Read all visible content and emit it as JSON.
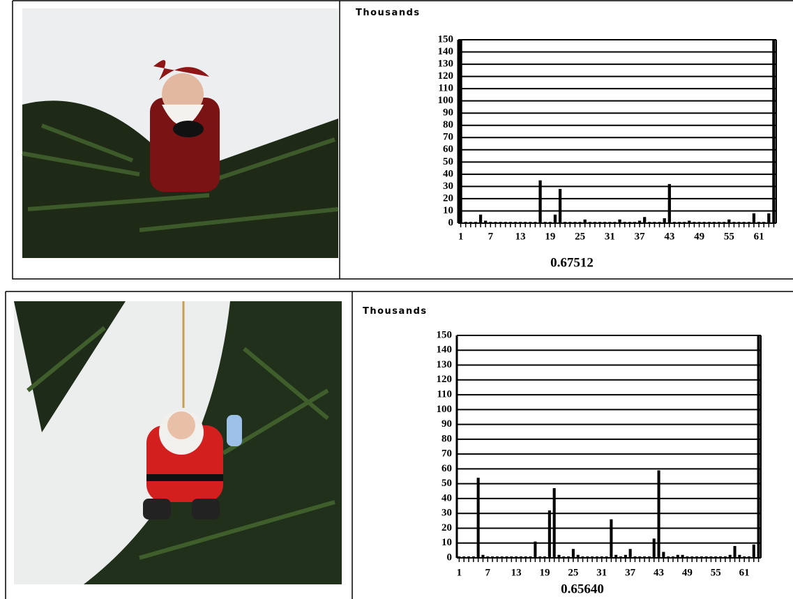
{
  "chart_data": [
    {
      "type": "bar",
      "ylabel": "Thousands",
      "caption": "0.67512",
      "color": "#000000",
      "grid": true,
      "categories": [
        "1",
        null,
        null,
        null,
        null,
        null,
        "7",
        null,
        null,
        null,
        null,
        null,
        "13",
        null,
        null,
        null,
        null,
        null,
        "19",
        null,
        null,
        null,
        null,
        null,
        "25",
        null,
        null,
        null,
        null,
        null,
        "31",
        null,
        null,
        null,
        null,
        null,
        "37",
        null,
        null,
        null,
        null,
        null,
        "43",
        null,
        null,
        null,
        null,
        null,
        "49",
        null,
        null,
        null,
        null,
        null,
        "55",
        null,
        null,
        null,
        null,
        null,
        "61",
        null,
        null,
        null
      ],
      "values": [
        150,
        1,
        1,
        1,
        7,
        2,
        1,
        1,
        1,
        1,
        1,
        1,
        1,
        1,
        1,
        1,
        35,
        1,
        1,
        7,
        28,
        1,
        1,
        1,
        1,
        3,
        1,
        1,
        1,
        1,
        1,
        1,
        3,
        1,
        1,
        1,
        2,
        5,
        1,
        1,
        1,
        4,
        32,
        1,
        1,
        1,
        2,
        1,
        1,
        1,
        1,
        1,
        1,
        1,
        3,
        1,
        1,
        1,
        1,
        8,
        1,
        1,
        8,
        150
      ],
      "ylim": [
        0,
        150
      ],
      "yticks": [
        0,
        10,
        20,
        30,
        40,
        50,
        60,
        70,
        80,
        90,
        100,
        110,
        120,
        130,
        140,
        150
      ]
    },
    {
      "type": "bar",
      "ylabel": "Thousands",
      "caption": "0.65640",
      "color": "#000000",
      "grid": true,
      "categories": [
        "1",
        null,
        null,
        null,
        null,
        null,
        "7",
        null,
        null,
        null,
        null,
        null,
        "13",
        null,
        null,
        null,
        null,
        null,
        "19",
        null,
        null,
        null,
        null,
        null,
        "25",
        null,
        null,
        null,
        null,
        null,
        "31",
        null,
        null,
        null,
        null,
        null,
        "37",
        null,
        null,
        null,
        null,
        null,
        "43",
        null,
        null,
        null,
        null,
        null,
        "49",
        null,
        null,
        null,
        null,
        null,
        "55",
        null,
        null,
        null,
        null,
        null,
        "61",
        null,
        null,
        null
      ],
      "values": [
        1,
        1,
        1,
        1,
        54,
        2,
        1,
        1,
        1,
        1,
        1,
        1,
        1,
        1,
        1,
        1,
        11,
        1,
        1,
        32,
        47,
        2,
        1,
        1,
        6,
        2,
        1,
        1,
        1,
        1,
        1,
        1,
        26,
        2,
        1,
        2,
        6,
        1,
        1,
        1,
        1,
        13,
        59,
        4,
        1,
        1,
        2,
        2,
        1,
        1,
        1,
        1,
        1,
        1,
        1,
        1,
        1,
        2,
        8,
        2,
        1,
        1,
        9,
        150
      ],
      "ylim": [
        0,
        150
      ],
      "yticks": [
        0,
        10,
        20,
        30,
        40,
        50,
        60,
        70,
        80,
        90,
        100,
        110,
        120,
        130,
        140,
        150
      ]
    }
  ]
}
